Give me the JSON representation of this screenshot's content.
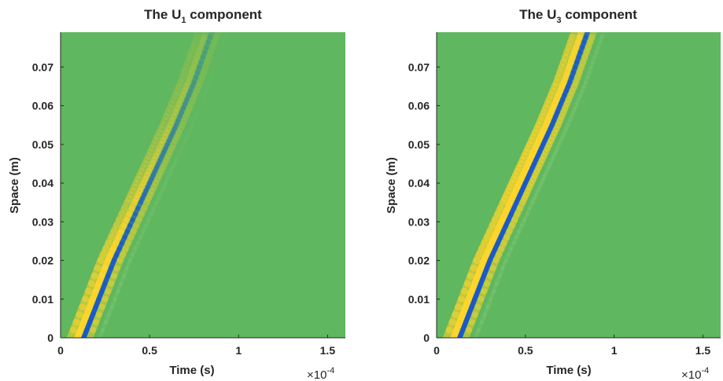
{
  "chart_data": [
    {
      "type": "heatmap",
      "title": {
        "prefix": "The U",
        "subscript": "1",
        "suffix": " component"
      },
      "xlabel": "Time (s)",
      "ylabel": "Space (m)",
      "x_multiplier": {
        "base": "×10",
        "exponent": "-4"
      },
      "xlim": [
        0,
        1.6
      ],
      "ylim": [
        0,
        0.079
      ],
      "xticks": [
        0,
        0.5,
        1,
        1.5
      ],
      "xtick_labels": [
        "0",
        "0.5",
        "1",
        "1.5"
      ],
      "yticks": [
        0,
        0.01,
        0.02,
        0.03,
        0.04,
        0.05,
        0.06,
        0.07
      ],
      "ytick_labels": [
        "0",
        "0.01",
        "0.02",
        "0.03",
        "0.04",
        "0.05",
        "0.06",
        "0.07"
      ],
      "colors": {
        "background": "#5fb75f",
        "negative": "#1d57c9",
        "positive": "#ffd52b"
      },
      "wave_front": {
        "x": [
          0.13,
          0.3,
          0.45,
          0.55,
          0.65,
          0.75,
          0.85
        ],
        "y": [
          0,
          0.02,
          0.035,
          0.045,
          0.055,
          0.066,
          0.079
        ],
        "amplitude": [
          1.0,
          0.9,
          0.55,
          0.35,
          0.25,
          0.18,
          0.12
        ]
      }
    },
    {
      "type": "heatmap",
      "title": {
        "prefix": "The U",
        "subscript": "3",
        "suffix": " component"
      },
      "xlabel": "Time (s)",
      "ylabel": "Space (m)",
      "x_multiplier": {
        "base": "×10",
        "exponent": "-4"
      },
      "xlim": [
        0,
        1.6
      ],
      "ylim": [
        0,
        0.079
      ],
      "xticks": [
        0,
        0.5,
        1,
        1.5
      ],
      "xtick_labels": [
        "0",
        "0.5",
        "1",
        "1.5"
      ],
      "yticks": [
        0,
        0.01,
        0.02,
        0.03,
        0.04,
        0.05,
        0.06,
        0.07
      ],
      "ytick_labels": [
        "0",
        "0.01",
        "0.02",
        "0.03",
        "0.04",
        "0.05",
        "0.06",
        "0.07"
      ],
      "colors": {
        "background": "#5fb75f",
        "negative": "#1d57c9",
        "positive": "#ffd52b"
      },
      "wave_front": {
        "x": [
          0.13,
          0.3,
          0.45,
          0.55,
          0.65,
          0.75,
          0.85
        ],
        "y": [
          0,
          0.02,
          0.035,
          0.045,
          0.055,
          0.066,
          0.079
        ],
        "amplitude": [
          1.0,
          1.0,
          0.95,
          0.9,
          0.85,
          0.8,
          0.75
        ]
      }
    }
  ]
}
